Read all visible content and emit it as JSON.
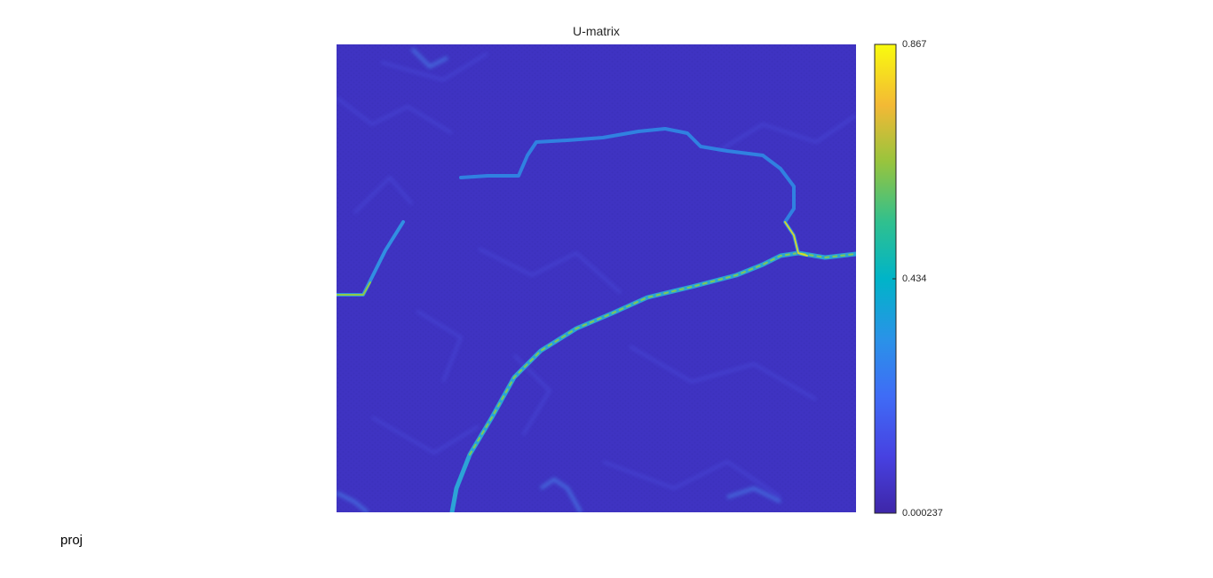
{
  "figure": {
    "footer_label": "proj"
  },
  "chart_data": {
    "type": "heatmap",
    "title": "U-matrix",
    "xlabel": "",
    "ylabel": "",
    "grid": false,
    "colormap": "parula",
    "colorbar": {
      "min": 0.000237,
      "max": 0.867,
      "ticks": [
        0.000237,
        0.434,
        0.867
      ],
      "tick_labels": [
        "0.000237",
        "0.434",
        "0.867"
      ],
      "placement": "right"
    },
    "colors": {
      "low": "#3e26a8",
      "mid_low": "#2f7ff4",
      "mid": "#00b9c7",
      "mid_high": "#71c94a",
      "high": "#f9fb0e"
    }
  }
}
